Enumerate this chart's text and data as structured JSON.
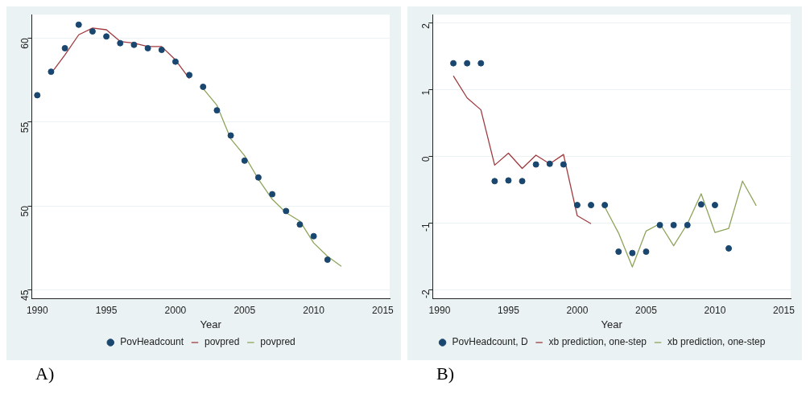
{
  "chart_data": [
    {
      "type": "line",
      "xlabel": "Year",
      "xlim": [
        1989.6,
        2015.5
      ],
      "xticks": [
        1990,
        1995,
        2000,
        2005,
        2010,
        2015
      ],
      "ylim": [
        44.5,
        61.4
      ],
      "yticks": [
        45,
        50,
        55,
        60
      ],
      "grid": "y",
      "legend": "bottom",
      "annotations": [
        "A)"
      ],
      "series": [
        {
          "name": "PovHeadcount",
          "type": "scatter",
          "marker": "circle",
          "color": "#1a476f",
          "x": [
            1990,
            1991,
            1992,
            1993,
            1994,
            1995,
            1996,
            1997,
            1998,
            1999,
            2000,
            2001,
            2002,
            2003,
            2004,
            2005,
            2006,
            2007,
            2008,
            2009,
            2010,
            2011
          ],
          "values": [
            56.6,
            58.0,
            59.4,
            60.8,
            60.4,
            60.1,
            59.7,
            59.6,
            59.4,
            59.3,
            58.6,
            57.8,
            57.1,
            55.7,
            54.2,
            52.7,
            51.7,
            50.7,
            49.7,
            48.9,
            48.2,
            46.8
          ]
        },
        {
          "name": "povpred",
          "color": "#a03a3f",
          "x": [
            1991,
            1992,
            1993,
            1994,
            1995,
            1996,
            1997,
            1998,
            1999,
            2000,
            2001
          ],
          "values": [
            57.9,
            59.0,
            60.2,
            60.6,
            60.5,
            59.8,
            59.7,
            59.5,
            59.5,
            58.7,
            57.6
          ]
        },
        {
          "name": "povpred",
          "color": "#8ea45a",
          "x": [
            2002,
            2003,
            2004,
            2005,
            2006,
            2007,
            2008,
            2009,
            2010,
            2011,
            2012
          ],
          "values": [
            57.0,
            56.0,
            54.0,
            53.0,
            51.6,
            50.4,
            49.6,
            49.1,
            47.8,
            47.0,
            46.4
          ]
        }
      ]
    },
    {
      "type": "line",
      "xlabel": "Year",
      "xlim": [
        1989.5,
        2015.5
      ],
      "xticks": [
        1990,
        1995,
        2000,
        2005,
        2010,
        2015
      ],
      "ylim": [
        -2.13,
        2.13
      ],
      "yticks": [
        -2,
        -1,
        0,
        1,
        2
      ],
      "grid": "y",
      "legend": "bottom",
      "annotations": [
        "B)"
      ],
      "series": [
        {
          "name": "PovHeadcount, D",
          "type": "scatter",
          "marker": "circle",
          "color": "#1a476f",
          "x": [
            1991,
            1992,
            1993,
            1994,
            1995,
            1996,
            1997,
            1998,
            1999,
            2000,
            2001,
            2002,
            2003,
            2004,
            2005,
            2006,
            2007,
            2008,
            2009,
            2010,
            2011
          ],
          "values": [
            1.4,
            1.4,
            1.4,
            -0.37,
            -0.36,
            -0.37,
            -0.12,
            -0.11,
            -0.12,
            -0.73,
            -0.73,
            -0.73,
            -1.43,
            -1.45,
            -1.43,
            -1.03,
            -1.03,
            -1.03,
            -0.72,
            -0.73,
            -1.38
          ]
        },
        {
          "name": "xb prediction, one-step",
          "color": "#a03a3f",
          "x": [
            1991,
            1992,
            1993,
            1994,
            1995,
            1996,
            1997,
            1998,
            1999,
            2000,
            2001
          ],
          "values": [
            1.21,
            0.88,
            0.7,
            -0.13,
            0.05,
            -0.18,
            0.02,
            -0.11,
            0.03,
            -0.89,
            -1.01
          ]
        },
        {
          "name": "xb prediction, one-step",
          "color": "#8ea45a",
          "x": [
            2002,
            2003,
            2004,
            2005,
            2006,
            2007,
            2008,
            2009,
            2010,
            2011,
            2012,
            2013
          ],
          "values": [
            -0.76,
            -1.15,
            -1.66,
            -1.12,
            -1.01,
            -1.34,
            -1.01,
            -0.56,
            -1.14,
            -1.08,
            -0.37,
            -0.74
          ]
        }
      ]
    }
  ]
}
